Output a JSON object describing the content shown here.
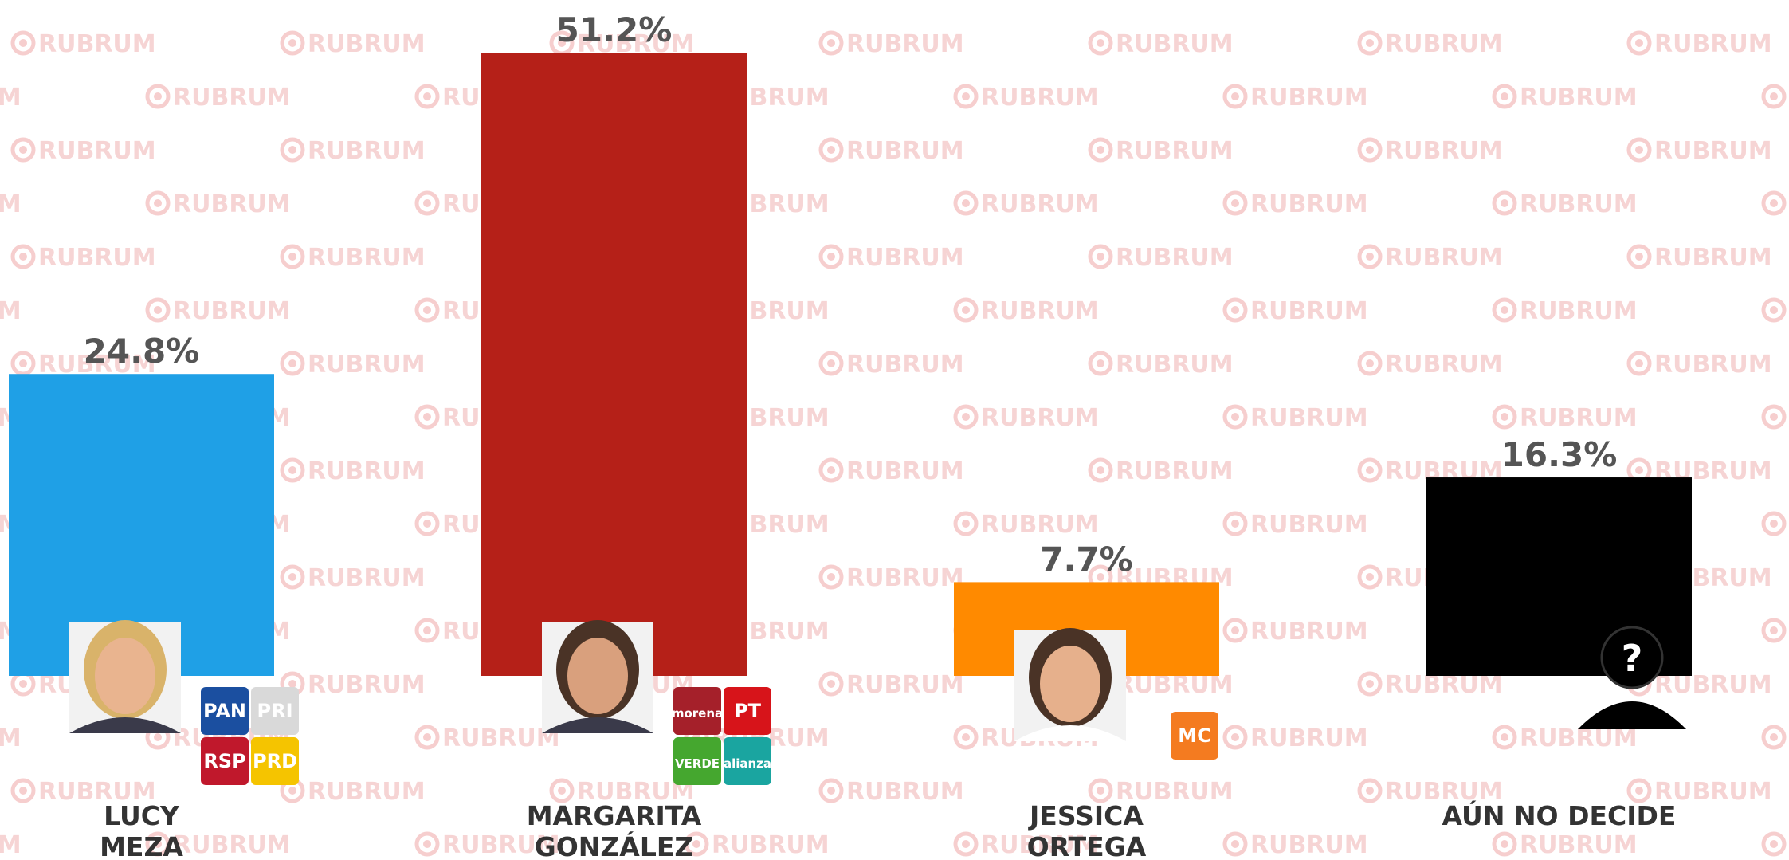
{
  "watermark": "RUBRUM",
  "chart_data": {
    "type": "bar",
    "categories": [
      "LUCY\nMEZA",
      "MARGARITA\nGONZÁLEZ",
      "JESSICA\nORTEGA",
      "AÚN NO DECIDE"
    ],
    "values": [
      24.8,
      51.2,
      7.7,
      16.3
    ],
    "value_labels": [
      "24.8%",
      "51.2%",
      "7.7%",
      "16.3%"
    ],
    "colors": [
      "#1fa0e6",
      "#b52018",
      "#ff8a00",
      "#000000"
    ],
    "logos": [
      [
        {
          "text": "PAN",
          "color": "#1b4fa0"
        },
        {
          "text": "PRI",
          "color": "#d9d9d9"
        },
        {
          "text": "RSP",
          "color": "#c0182c"
        },
        {
          "text": "PRD",
          "color": "#f5c400"
        }
      ],
      [
        {
          "text": "morena",
          "color": "#a5202a"
        },
        {
          "text": "PT",
          "color": "#d7141a"
        },
        {
          "text": "VERDE",
          "color": "#45a72f"
        },
        {
          "text": "alianza",
          "color": "#1aa5a0"
        }
      ],
      [
        {
          "text": "MC",
          "color": "#f47b20"
        }
      ],
      []
    ],
    "unknown_symbol": "?"
  }
}
